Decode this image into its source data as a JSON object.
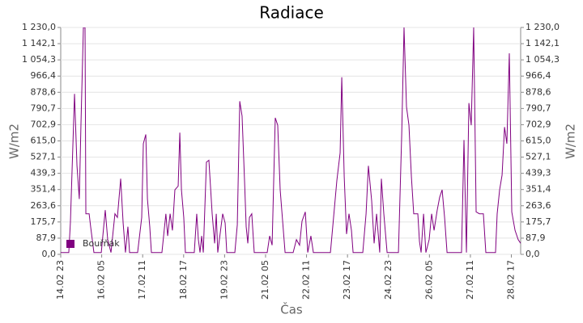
{
  "chart_data": {
    "type": "line",
    "title": "Radiace",
    "x_label": "Čas",
    "y_label": "W/m2",
    "x": [
      0,
      5.9,
      7.1,
      10.1,
      11.9,
      13.6,
      14.8,
      16.6,
      17.8,
      18.4,
      20.8,
      21.9,
      24.3,
      29.7,
      32.6,
      34.4,
      36.8,
      39.7,
      41.5,
      43.9,
      45.7,
      47.4,
      49.2,
      50.4,
      56.3,
      59.3,
      60.5,
      62.3,
      63.5,
      65.2,
      66.4,
      74.1,
      77.0,
      78.3,
      80.1,
      81.8,
      83.6,
      86.0,
      87.2,
      88.4,
      90.1,
      91.3,
      97.8,
      99.6,
      100.8,
      102.0,
      103.2,
      104.4,
      106.7,
      108.5,
      110.9,
      112.7,
      113.9,
      115.0,
      118.6,
      120.4,
      121.6,
      127.5,
      129.3,
      131.1,
      132.8,
      134.6,
      135.8,
      137.0,
      138.2,
      139.9,
      141.7,
      151.2,
      153.0,
      154.8,
      157.1,
      158.9,
      160.7,
      162.5,
      164.3,
      170.2,
      172.6,
      174.9,
      176.7,
      179.1,
      180.9,
      183.2,
      185.0,
      197.5,
      199.8,
      202.2,
      204.6,
      205.8,
      207.6,
      209.3,
      211.1,
      212.9,
      214.1,
      221.2,
      223.6,
      225.3,
      227.7,
      229.5,
      231.3,
      233.6,
      234.8,
      236.6,
      239.0,
      247.3,
      249.7,
      251.4,
      253.2,
      255.0,
      256.8,
      258.5,
      261.5,
      262.7,
      263.9,
      265.7,
      267.4,
      269.8,
      271.6,
      273.4,
      275.7,
      277.5,
      279.3,
      281.1,
      282.9,
      293.5,
      295.3,
      297.1,
      298.9,
      300.6,
      302.4,
      304.2,
      306.6,
      309.5,
      311.3,
      318.4,
      319.6,
      321.4,
      323.2,
      325.0,
      326.7,
      328.5,
      330.3,
      332.7,
      335.0,
      336.8
    ],
    "series": [
      {
        "name": "Bouřňák",
        "color": "#800080",
        "values": [
          10,
          10,
          175,
          870,
          480,
          300,
          700,
          1230,
          1230,
          220,
          220,
          150,
          10,
          10,
          240,
          80,
          10,
          220,
          200,
          410,
          170,
          10,
          150,
          10,
          10,
          200,
          600,
          650,
          300,
          150,
          10,
          10,
          220,
          100,
          220,
          130,
          350,
          370,
          660,
          350,
          200,
          10,
          10,
          220,
          80,
          10,
          100,
          10,
          500,
          510,
          220,
          60,
          220,
          10,
          220,
          170,
          10,
          10,
          160,
          830,
          750,
          400,
          150,
          60,
          200,
          220,
          10,
          10,
          100,
          50,
          740,
          700,
          350,
          180,
          10,
          10,
          80,
          50,
          180,
          230,
          10,
          100,
          10,
          10,
          200,
          400,
          550,
          960,
          420,
          110,
          220,
          130,
          10,
          10,
          220,
          480,
          290,
          60,
          220,
          10,
          410,
          220,
          10,
          10,
          650,
          1230,
          800,
          700,
          420,
          220,
          220,
          70,
          10,
          220,
          10,
          80,
          220,
          130,
          240,
          310,
          350,
          200,
          10,
          10,
          620,
          10,
          820,
          700,
          1230,
          230,
          220,
          220,
          10,
          10,
          220,
          350,
          430,
          690,
          600,
          1090,
          230,
          130,
          80,
          60
        ]
      }
    ],
    "xlim": [
      0,
      336.8
    ],
    "xticks": [
      {
        "value": 0,
        "label": "14.02 23"
      },
      {
        "value": 30,
        "label": "16.02 05"
      },
      {
        "value": 60,
        "label": "17.02 11"
      },
      {
        "value": 90,
        "label": "18.02 17"
      },
      {
        "value": 120,
        "label": "19.02 23"
      },
      {
        "value": 150,
        "label": "21.02 05"
      },
      {
        "value": 180,
        "label": "22.02 11"
      },
      {
        "value": 210,
        "label": "23.02 17"
      },
      {
        "value": 240,
        "label": "24.02 23"
      },
      {
        "value": 270,
        "label": "26.02 05"
      },
      {
        "value": 300,
        "label": "27.02 11"
      },
      {
        "value": 330,
        "label": "28.02 17"
      }
    ],
    "ylim": [
      0,
      1230
    ],
    "yticks": [
      {
        "value": 0,
        "label": "0,0"
      },
      {
        "value": 87.86,
        "label": "87,9"
      },
      {
        "value": 175.71,
        "label": "175,7"
      },
      {
        "value": 263.57,
        "label": "263,6"
      },
      {
        "value": 351.43,
        "label": "351,4"
      },
      {
        "value": 439.29,
        "label": "439,3"
      },
      {
        "value": 527.14,
        "label": "527,1"
      },
      {
        "value": 615,
        "label": "615,0"
      },
      {
        "value": 702.86,
        "label": "702,9"
      },
      {
        "value": 790.71,
        "label": "790,7"
      },
      {
        "value": 878.57,
        "label": "878,6"
      },
      {
        "value": 966.43,
        "label": "966,4"
      },
      {
        "value": 1054.29,
        "label": "1 054,3"
      },
      {
        "value": 1142.14,
        "label": "1 142,1"
      },
      {
        "value": 1230,
        "label": "1 230,0"
      }
    ],
    "grid": true,
    "legend": "lower-left"
  }
}
